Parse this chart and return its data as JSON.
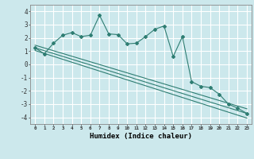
{
  "xlabel": "Humidex (Indice chaleur)",
  "bg_color": "#cce8ec",
  "grid_color": "#ffffff",
  "line_color": "#2e7d72",
  "xlim": [
    -0.5,
    23.5
  ],
  "ylim": [
    -4.5,
    4.5
  ],
  "xticks": [
    0,
    1,
    2,
    3,
    4,
    5,
    6,
    7,
    8,
    9,
    10,
    11,
    12,
    13,
    14,
    15,
    16,
    17,
    18,
    19,
    20,
    21,
    22,
    23
  ],
  "yticks": [
    -4,
    -3,
    -2,
    -1,
    0,
    1,
    2,
    3,
    4
  ],
  "scatter_x": [
    0,
    1,
    2,
    3,
    4,
    5,
    6,
    7,
    8,
    9,
    10,
    11,
    12,
    13,
    14,
    15,
    16,
    17,
    18,
    19,
    20,
    21,
    22,
    23
  ],
  "scatter_y": [
    1.25,
    0.8,
    1.6,
    2.2,
    2.4,
    2.1,
    2.2,
    3.7,
    2.3,
    2.25,
    1.55,
    1.6,
    2.1,
    2.65,
    2.9,
    0.6,
    2.1,
    -1.3,
    -1.65,
    -1.75,
    -2.25,
    -3.0,
    -3.3,
    -3.7
  ],
  "line1_x": [
    0,
    23
  ],
  "line1_y": [
    1.25,
    -3.7
  ],
  "line2_x": [
    0,
    23
  ],
  "line2_y": [
    1.05,
    -4.05
  ],
  "line3_x": [
    0,
    23
  ],
  "line3_y": [
    1.45,
    -3.35
  ]
}
